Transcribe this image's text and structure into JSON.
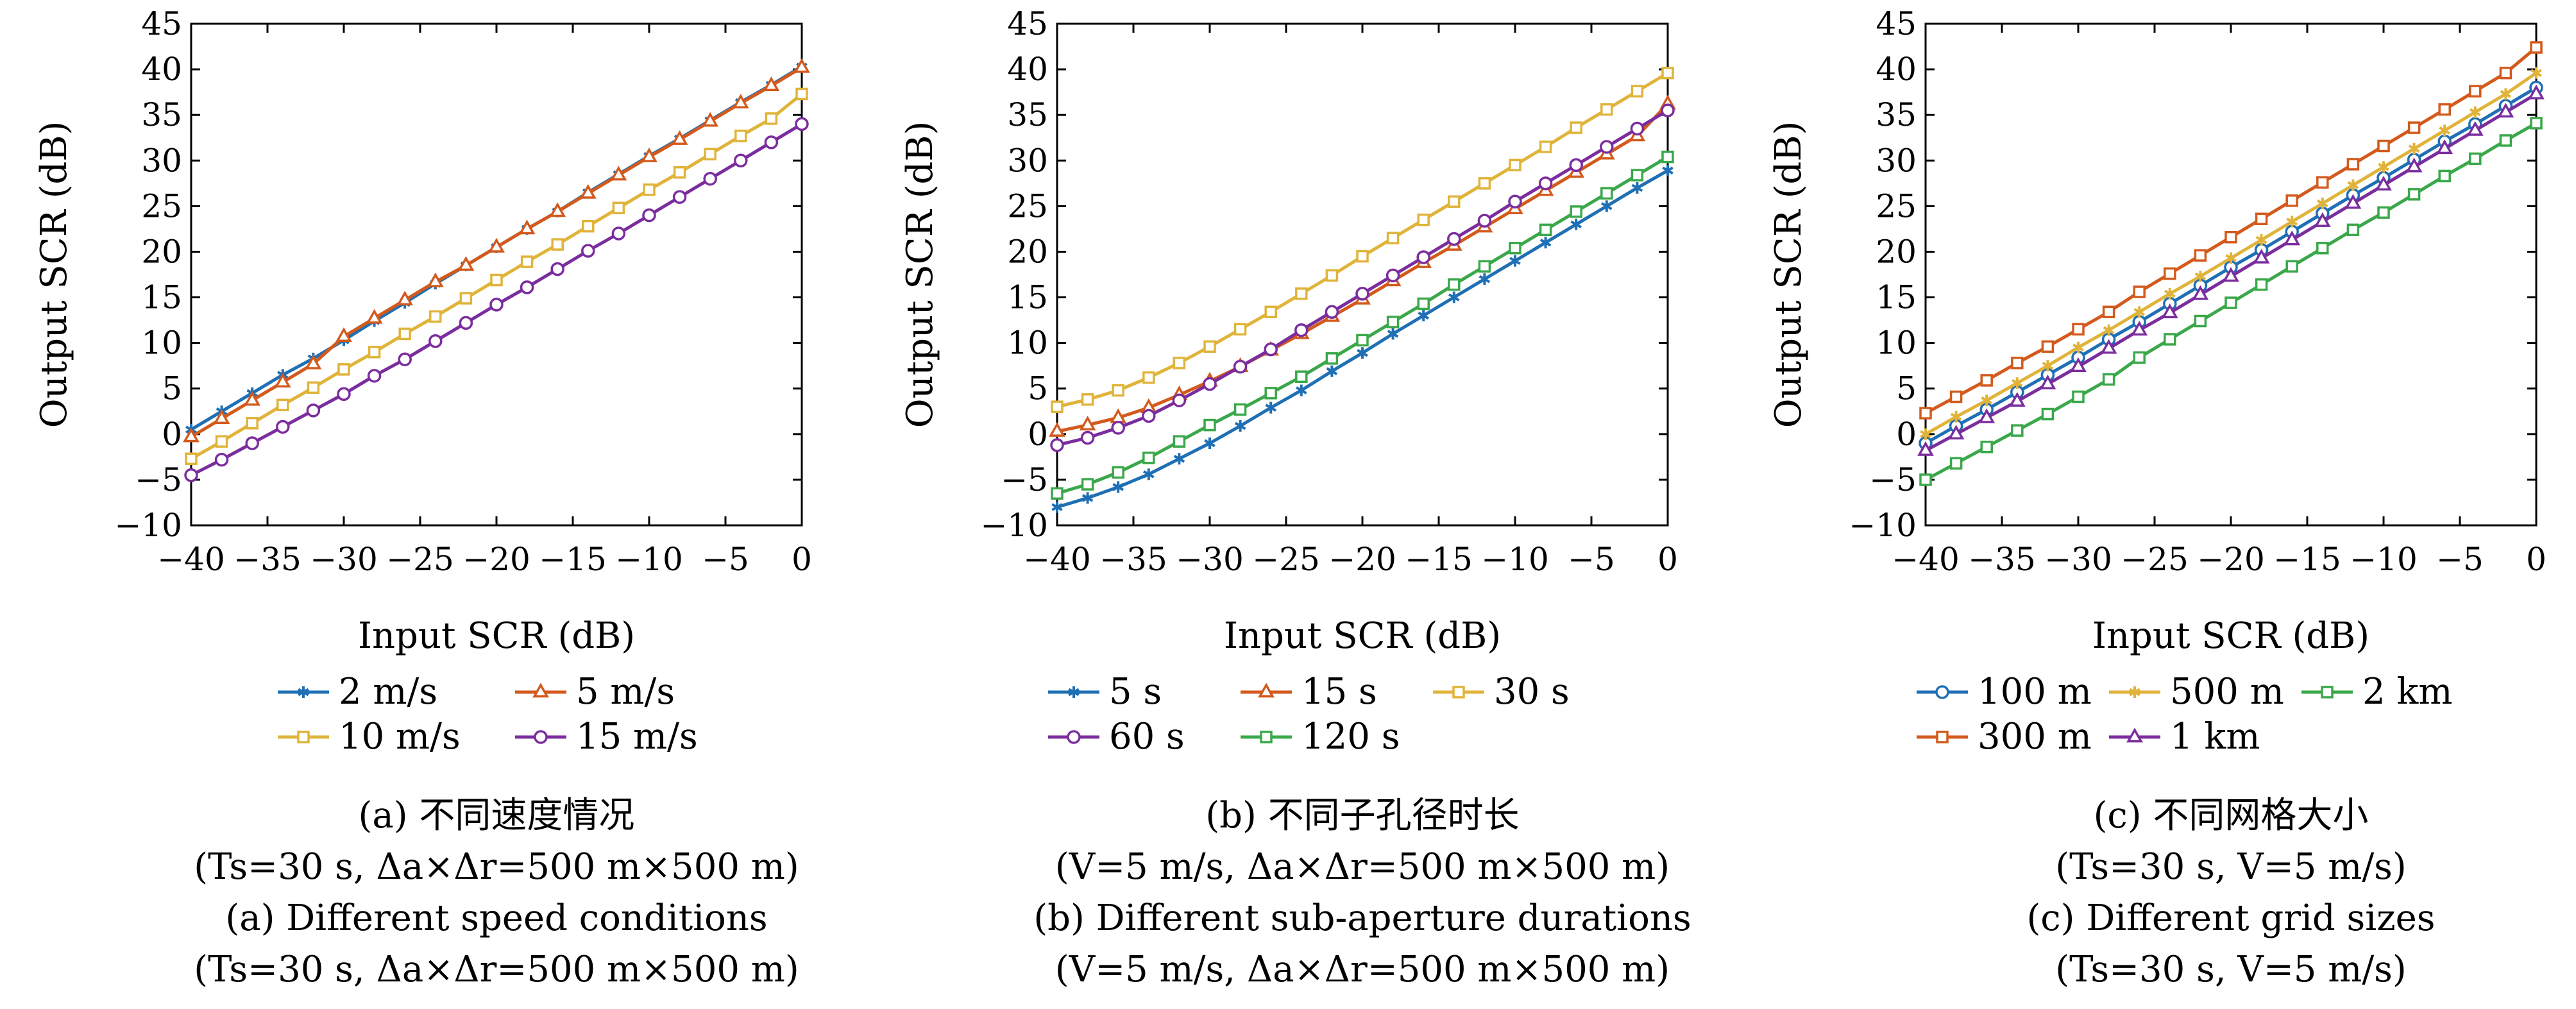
{
  "chart_data": [
    {
      "type": "line",
      "xlabel": "Input SCR (dB)",
      "ylabel": "Output SCR (dB)",
      "xlim": [
        -40,
        0
      ],
      "ylim": [
        -10,
        45
      ],
      "xticks": [
        "−40",
        "−35",
        "−30",
        "−25",
        "−20",
        "−15",
        "−10",
        "−5",
        "0"
      ],
      "yticks": [
        "45",
        "40",
        "35",
        "30",
        "25",
        "20",
        "15",
        "10",
        "5",
        "0",
        "−5",
        "−10"
      ],
      "grid": false,
      "legend": "below",
      "x": [
        -40,
        -38,
        -36,
        -34,
        -32,
        -30,
        -28,
        -26,
        -24,
        -22,
        -20,
        -18,
        -16,
        -14,
        -12,
        -10,
        -8,
        -6,
        -4,
        -2,
        0
      ],
      "series": [
        {
          "name": "2 m/s",
          "color": "#1f6fb4",
          "marker": "star",
          "values": [
            0.5,
            2.5,
            4.5,
            6.5,
            8.3,
            10.3,
            12.4,
            14.4,
            16.5,
            18.5,
            20.5,
            22.5,
            24.4,
            26.5,
            28.5,
            30.5,
            32.4,
            34.4,
            36.4,
            38.3,
            40.3
          ]
        },
        {
          "name": "5 m/s",
          "color": "#d35a1c",
          "marker": "triangle",
          "values": [
            -0.3,
            1.7,
            3.7,
            5.7,
            7.7,
            10.7,
            12.7,
            14.7,
            16.7,
            18.5,
            20.5,
            22.5,
            24.4,
            26.4,
            28.4,
            30.4,
            32.3,
            34.3,
            36.3,
            38.2,
            40.2
          ]
        },
        {
          "name": "10 m/s",
          "color": "#e0b43a",
          "marker": "square",
          "values": [
            -2.7,
            -0.8,
            1.2,
            3.2,
            5.1,
            7.1,
            9.0,
            11.0,
            12.9,
            14.9,
            16.9,
            18.9,
            20.8,
            22.8,
            24.8,
            26.8,
            28.7,
            30.7,
            32.7,
            34.6,
            37.3
          ]
        },
        {
          "name": "15 m/s",
          "color": "#7b2d9e",
          "marker": "circle",
          "values": [
            -4.5,
            -2.8,
            -1.0,
            0.8,
            2.6,
            4.4,
            6.4,
            8.2,
            10.2,
            12.2,
            14.2,
            16.1,
            18.1,
            20.1,
            22.0,
            24.0,
            26.0,
            28.0,
            30.0,
            32.0,
            34.0
          ]
        }
      ],
      "legend_layout": [
        [
          0,
          1
        ],
        [
          2,
          3
        ]
      ]
    },
    {
      "type": "line",
      "xlabel": "Input SCR (dB)",
      "ylabel": "Output SCR (dB)",
      "xlim": [
        -40,
        0
      ],
      "ylim": [
        -10,
        45
      ],
      "xticks": [
        "−40",
        "−35",
        "−30",
        "−25",
        "−20",
        "−15",
        "−10",
        "−5",
        "0"
      ],
      "yticks": [
        "45",
        "40",
        "35",
        "30",
        "25",
        "20",
        "15",
        "10",
        "5",
        "0",
        "−5",
        "−10"
      ],
      "grid": false,
      "legend": "below",
      "x": [
        -40,
        -38,
        -36,
        -34,
        -32,
        -30,
        -28,
        -26,
        -24,
        -22,
        -20,
        -18,
        -16,
        -14,
        -12,
        -10,
        -8,
        -6,
        -4,
        -2,
        0
      ],
      "series": [
        {
          "name": "5 s",
          "color": "#1f6fb4",
          "marker": "star",
          "values": [
            -8.0,
            -7.0,
            -5.8,
            -4.4,
            -2.7,
            -1.0,
            0.9,
            2.9,
            4.8,
            6.9,
            8.9,
            11.0,
            13.0,
            15.0,
            17.0,
            19.0,
            21.0,
            23.0,
            25.0,
            27.0,
            28.9
          ]
        },
        {
          "name": "15 s",
          "color": "#d35a1c",
          "marker": "triangle",
          "values": [
            0.3,
            1.0,
            1.8,
            2.9,
            4.3,
            5.8,
            7.4,
            9.2,
            11.0,
            12.9,
            14.8,
            16.8,
            18.8,
            20.7,
            22.7,
            24.7,
            26.7,
            28.7,
            30.7,
            32.7,
            36.2
          ]
        },
        {
          "name": "30 s",
          "color": "#e0b43a",
          "marker": "square",
          "values": [
            3.0,
            3.8,
            4.8,
            6.2,
            7.8,
            9.6,
            11.5,
            13.4,
            15.4,
            17.4,
            19.5,
            21.5,
            23.5,
            25.5,
            27.5,
            29.5,
            31.5,
            33.6,
            35.6,
            37.6,
            39.6
          ]
        },
        {
          "name": "60 s",
          "color": "#7b2d9e",
          "marker": "circle",
          "values": [
            -1.2,
            -0.4,
            0.7,
            2.0,
            3.7,
            5.5,
            7.4,
            9.3,
            11.4,
            13.4,
            15.4,
            17.4,
            19.4,
            21.4,
            23.4,
            25.5,
            27.5,
            29.5,
            31.5,
            33.5,
            35.5
          ]
        },
        {
          "name": "120 s",
          "color": "#3aa84a",
          "marker": "square",
          "values": [
            -6.5,
            -5.5,
            -4.2,
            -2.6,
            -0.8,
            1.0,
            2.7,
            4.5,
            6.3,
            8.3,
            10.3,
            12.3,
            14.3,
            16.4,
            18.4,
            20.4,
            22.4,
            24.4,
            26.4,
            28.4,
            30.4
          ]
        }
      ],
      "legend_layout": [
        [
          0,
          1,
          2
        ],
        [
          3,
          4
        ]
      ]
    },
    {
      "type": "line",
      "xlabel": "Input SCR (dB)",
      "ylabel": "Output SCR (dB)",
      "xlim": [
        -40,
        0
      ],
      "ylim": [
        -10,
        45
      ],
      "xticks": [
        "−40",
        "−35",
        "−30",
        "−25",
        "−20",
        "−15",
        "−10",
        "−5",
        "0"
      ],
      "yticks": [
        "45",
        "40",
        "35",
        "30",
        "25",
        "20",
        "15",
        "10",
        "5",
        "0",
        "−5",
        "−10"
      ],
      "grid": false,
      "legend": "below",
      "x": [
        -40,
        -38,
        -36,
        -34,
        -32,
        -30,
        -28,
        -26,
        -24,
        -22,
        -20,
        -18,
        -16,
        -14,
        -12,
        -10,
        -8,
        -6,
        -4,
        -2,
        0
      ],
      "series": [
        {
          "name": "100 m",
          "color": "#1f6fb4",
          "marker": "circle",
          "values": [
            -1.0,
            0.9,
            2.7,
            4.6,
            6.5,
            8.4,
            10.4,
            12.3,
            14.3,
            16.3,
            18.3,
            20.2,
            22.2,
            24.2,
            26.2,
            28.1,
            30.1,
            32.1,
            34.0,
            36.0,
            38.0
          ]
        },
        {
          "name": "500 m",
          "color": "#e0b43a",
          "marker": "star",
          "values": [
            0.0,
            1.9,
            3.7,
            5.6,
            7.5,
            9.5,
            11.4,
            13.4,
            15.4,
            17.3,
            19.3,
            21.3,
            23.3,
            25.3,
            27.3,
            29.3,
            31.3,
            33.3,
            35.3,
            37.3,
            39.6
          ]
        },
        {
          "name": "2 km",
          "color": "#3aa84a",
          "marker": "square",
          "values": [
            -5.0,
            -3.2,
            -1.4,
            0.4,
            2.2,
            4.1,
            6.0,
            8.4,
            10.4,
            12.4,
            14.4,
            16.4,
            18.4,
            20.4,
            22.4,
            24.3,
            26.3,
            28.3,
            30.2,
            32.2,
            34.1
          ]
        },
        {
          "name": "300 m",
          "color": "#d35a1c",
          "marker": "square",
          "values": [
            2.3,
            4.1,
            5.9,
            7.8,
            9.6,
            11.5,
            13.4,
            15.6,
            17.6,
            19.6,
            21.6,
            23.6,
            25.6,
            27.6,
            29.6,
            31.6,
            33.6,
            35.6,
            37.6,
            39.6,
            42.4
          ]
        },
        {
          "name": "1 km",
          "color": "#7b2d9e",
          "marker": "triangle",
          "values": [
            -1.8,
            0.0,
            1.8,
            3.6,
            5.5,
            7.4,
            9.4,
            11.4,
            13.3,
            15.3,
            17.3,
            19.3,
            21.3,
            23.3,
            25.3,
            27.3,
            29.3,
            31.3,
            33.3,
            35.3,
            37.3
          ]
        }
      ],
      "legend_layout": [
        [
          0,
          1,
          2
        ],
        [
          3,
          4
        ]
      ]
    }
  ],
  "captions": [
    {
      "cn": "(a) 不同速度情况",
      "cn_params": "(Ts=30 s, Δa×Δr=500 m×500 m)",
      "en": "(a) Different speed conditions",
      "en_params": "(Ts=30 s, Δa×Δr=500 m×500 m)"
    },
    {
      "cn": "(b) 不同子孔径时长",
      "cn_params": "(V=5 m/s, Δa×Δr=500 m×500 m)",
      "en": "(b) Different sub-aperture durations",
      "en_params": "(V=5 m/s, Δa×Δr=500 m×500 m)"
    },
    {
      "cn": "(c) 不同网格大小",
      "cn_params": "(Ts=30 s, V=5 m/s)",
      "en": "(c) Different grid sizes",
      "en_params": "(Ts=30 s, V=5 m/s)"
    }
  ]
}
